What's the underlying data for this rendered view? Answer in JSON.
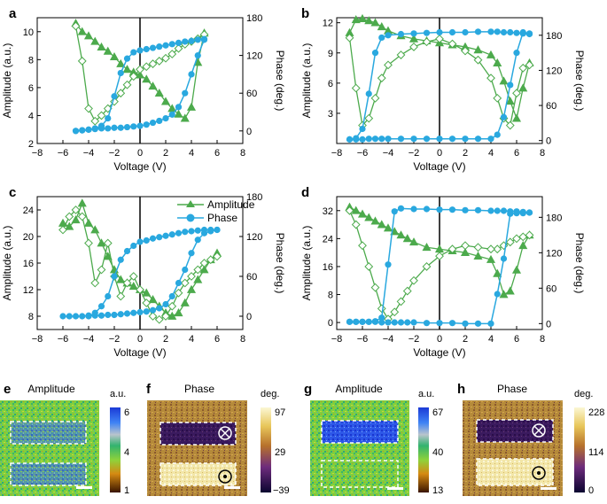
{
  "colors": {
    "amplitude": "#4caa4c",
    "phase": "#29a8df",
    "axis": "#000000",
    "dash": "#ffffff"
  },
  "legend": {
    "amplitude": "Amplitude",
    "phase": "Phase"
  },
  "chart_data": [
    {
      "panel": "a",
      "type": "line",
      "xlabel": "Voltage (V)",
      "ylabel": "Amplitude (a.u.)",
      "y2label": "Phase (deg.)",
      "xlim": [
        -8,
        8
      ],
      "xticks": [
        "−8",
        "−6",
        "−4",
        "−2",
        "0",
        "2",
        "4",
        "6",
        "8"
      ],
      "ylim": [
        2,
        11
      ],
      "yticks": [
        2,
        4,
        6,
        8,
        10
      ],
      "y2lim": [
        -20,
        180
      ],
      "y2ticks": [
        0,
        60,
        120,
        180
      ],
      "amplitude_up": {
        "x": [
          -5,
          -4.5,
          -4,
          -3.5,
          -3,
          -2.5,
          -2,
          -1.5,
          -1,
          -0.5,
          0,
          0.5,
          1,
          1.5,
          2,
          2.5,
          3,
          3.5,
          4,
          4.5,
          5
        ],
        "y": [
          10.6,
          10.0,
          9.7,
          9.3,
          8.9,
          8.6,
          8.2,
          7.7,
          7.3,
          7.1,
          6.9,
          6.6,
          6.1,
          5.6,
          5.0,
          4.5,
          4.1,
          3.8,
          4.6,
          7.8,
          9.9
        ]
      },
      "amplitude_down": {
        "x": [
          5,
          4.5,
          4,
          3.5,
          3,
          2.5,
          2,
          1.5,
          1,
          0.5,
          0,
          -0.5,
          -1,
          -1.5,
          -2,
          -2.5,
          -3,
          -3.5,
          -4,
          -4.5,
          -5
        ],
        "y": [
          9.8,
          9.5,
          9.3,
          9.1,
          8.8,
          8.4,
          8.1,
          7.9,
          7.7,
          7.5,
          7.3,
          6.8,
          6.2,
          5.6,
          5.0,
          4.5,
          4.0,
          3.6,
          4.5,
          7.9,
          10.4
        ]
      },
      "phase_up": {
        "x": [
          -5,
          -4.5,
          -4,
          -3.5,
          -3,
          -2.5,
          -2,
          -1.5,
          -1,
          -0.5,
          0,
          0.5,
          1,
          1.5,
          2,
          2.5,
          3,
          3.5,
          4,
          4.5,
          5
        ],
        "y": [
          0,
          1,
          2,
          3,
          4,
          4,
          5,
          5,
          6,
          7,
          8,
          10,
          13,
          16,
          20,
          26,
          38,
          60,
          90,
          120,
          145
        ]
      },
      "phase_down": {
        "x": [
          5,
          4.5,
          4,
          3.5,
          3,
          2.5,
          2,
          1.5,
          1,
          0.5,
          0,
          -0.5,
          -1,
          -1.5,
          -2,
          -2.5,
          -3,
          -3.5,
          -4,
          -4.5,
          -5
        ],
        "y": [
          146,
          145,
          143,
          142,
          140,
          138,
          136,
          134,
          132,
          130,
          128,
          125,
          115,
          92,
          55,
          20,
          8,
          4,
          2,
          1,
          0
        ]
      }
    },
    {
      "panel": "b",
      "type": "line",
      "xlabel": "Voltage (V)",
      "ylabel": "Amplitude (a.u.)",
      "y2label": "Phase (deg.)",
      "xlim": [
        -8,
        8
      ],
      "xticks": [
        "−8",
        "−6",
        "−4",
        "−2",
        "0",
        "2",
        "4",
        "6",
        "8"
      ],
      "ylim": [
        0,
        12.5
      ],
      "yticks": [
        3,
        6,
        9,
        12
      ],
      "y2lim": [
        -5,
        210
      ],
      "y2ticks": [
        0,
        60,
        120,
        180
      ],
      "amplitude_up": {
        "x": [
          -7,
          -6.5,
          -6,
          -5.5,
          -5,
          -4.5,
          -4,
          -3,
          -2,
          -1,
          0,
          1,
          2,
          3,
          4,
          4.5,
          5,
          5.5,
          6,
          6.5,
          7
        ],
        "y": [
          11,
          12.3,
          12.4,
          12.2,
          12.0,
          11.6,
          11.2,
          10.7,
          10.4,
          10.2,
          10.0,
          9.8,
          9.6,
          9.3,
          8.8,
          8.0,
          6.2,
          4.2,
          2.5,
          5.5,
          8.0
        ]
      },
      "amplitude_down": {
        "x": [
          7,
          6.5,
          6,
          5.5,
          5,
          4.5,
          4,
          3,
          2,
          1,
          0,
          -1,
          -2,
          -3,
          -4,
          -4.5,
          -5,
          -5.5,
          -6,
          -6.5,
          -7
        ],
        "y": [
          7.8,
          7.5,
          5.0,
          1.8,
          2.5,
          4.5,
          6.5,
          8.3,
          9.2,
          9.9,
          10.4,
          10.1,
          9.6,
          8.8,
          7.8,
          6.5,
          4.5,
          2.5,
          1.8,
          5.5,
          10.5
        ]
      },
      "phase_up": {
        "x": [
          -7,
          -6.5,
          -6,
          -5.5,
          -5,
          -4.5,
          -4,
          -3,
          -2,
          -1,
          0,
          1,
          2,
          3,
          4,
          4.5,
          5,
          5.5,
          6,
          6.5,
          7
        ],
        "y": [
          2,
          2,
          2,
          3,
          3,
          3,
          3,
          3,
          3,
          3,
          3,
          3,
          3,
          3,
          3,
          10,
          40,
          95,
          150,
          185,
          183
        ]
      },
      "phase_down": {
        "x": [
          7,
          6.5,
          6,
          5.5,
          5,
          4.5,
          4,
          3,
          2,
          1,
          0,
          -1,
          -2,
          -3,
          -4,
          -4.5,
          -5,
          -5.5,
          -6,
          -6.5,
          -7
        ],
        "y": [
          182,
          183,
          184,
          185,
          185,
          186,
          186,
          186,
          185,
          185,
          185,
          184,
          183,
          182,
          180,
          176,
          150,
          80,
          20,
          4,
          2
        ]
      }
    },
    {
      "panel": "c",
      "type": "line",
      "xlabel": "Voltage (V)",
      "ylabel": "Amplitude (a.u.)",
      "y2label": "Phase (deg.)",
      "xlim": [
        -8,
        8
      ],
      "xticks": [
        "−8",
        "−6",
        "−4",
        "−2",
        "0",
        "2",
        "4",
        "6",
        "8"
      ],
      "ylim": [
        6,
        26
      ],
      "yticks": [
        8,
        12,
        16,
        20,
        24
      ],
      "y2lim": [
        -20,
        180
      ],
      "y2ticks": [
        0,
        60,
        120,
        180
      ],
      "amplitude_up": {
        "x": [
          -6,
          -5.5,
          -5,
          -4.5,
          -4,
          -3.5,
          -3,
          -2.5,
          -2,
          -1.5,
          -1,
          -0.5,
          0,
          0.5,
          1,
          1.5,
          2,
          2.5,
          3,
          3.5,
          4,
          4.5,
          5,
          5.5,
          6
        ],
        "y": [
          22,
          21.5,
          22.5,
          25,
          22,
          21,
          19,
          17,
          15,
          13.5,
          13,
          12.5,
          12,
          11.5,
          10.5,
          9.5,
          8.5,
          8.0,
          8.5,
          10,
          12,
          13.5,
          15,
          16.5,
          17.5
        ]
      },
      "amplitude_down": {
        "x": [
          6,
          5.5,
          5,
          4.5,
          4,
          3.5,
          3,
          2.5,
          2,
          1.5,
          1,
          0.5,
          0,
          -0.5,
          -1,
          -1.5,
          -2,
          -2.5,
          -3,
          -3.5,
          -4,
          -4.5,
          -5,
          -5.5,
          -6
        ],
        "y": [
          17,
          16.5,
          16,
          15,
          14,
          13,
          11.5,
          9.5,
          8.0,
          7.5,
          8.0,
          10,
          12,
          14,
          13,
          11,
          14,
          19,
          15,
          13,
          19,
          23,
          24,
          23,
          21
        ]
      },
      "phase_up": {
        "x": [
          -6,
          -5.5,
          -5,
          -4.5,
          -4,
          -3.5,
          -3,
          -2.5,
          -2,
          -1.5,
          -1,
          -0.5,
          0,
          0.5,
          1,
          1.5,
          2,
          2.5,
          3,
          3.5,
          4,
          4.5,
          5,
          5.5,
          6
        ],
        "y": [
          0,
          0,
          0,
          0,
          1,
          1,
          1,
          2,
          2,
          3,
          4,
          5,
          6,
          7,
          9,
          12,
          18,
          30,
          50,
          70,
          95,
          115,
          125,
          128,
          130
        ]
      },
      "phase_down": {
        "x": [
          6,
          5.5,
          5,
          4.5,
          4,
          3.5,
          3,
          2.5,
          2,
          1.5,
          1,
          0.5,
          0,
          -0.5,
          -1,
          -1.5,
          -2,
          -2.5,
          -3,
          -3.5,
          -4
        ],
        "y": [
          130,
          130,
          130,
          129,
          128,
          127,
          125,
          123,
          121,
          119,
          117,
          114,
          112,
          106,
          98,
          85,
          60,
          30,
          15,
          5,
          0
        ]
      }
    },
    {
      "panel": "d",
      "type": "line",
      "xlabel": "Voltage (V)",
      "ylabel": "Amplitude (a.u.)",
      "y2label": "Phase (deg.)",
      "xlim": [
        -8,
        8
      ],
      "xticks": [
        "−8",
        "−6",
        "−4",
        "−2",
        "0",
        "2",
        "4",
        "6",
        "8"
      ],
      "ylim": [
        -2,
        36
      ],
      "yticks": [
        0,
        8,
        16,
        24,
        32
      ],
      "y2lim": [
        -10,
        215
      ],
      "y2ticks": [
        0,
        60,
        120,
        180
      ],
      "amplitude_up": {
        "x": [
          -7,
          -6.5,
          -6,
          -5.5,
          -5,
          -4.5,
          -4,
          -3.5,
          -3,
          -2.5,
          -2,
          -1,
          0,
          1,
          2,
          3,
          4,
          4.5,
          5,
          5.5,
          6,
          6.5,
          7
        ],
        "y": [
          33,
          32,
          31,
          30,
          29,
          28,
          27,
          26,
          25,
          24,
          23,
          21.5,
          21,
          20.5,
          20,
          19,
          18,
          14,
          8,
          9,
          15,
          22,
          25
        ]
      },
      "amplitude_down": {
        "x": [
          7,
          6.5,
          6,
          5.5,
          5,
          4.5,
          4,
          3,
          2,
          1,
          0,
          -1,
          -2,
          -2.5,
          -3,
          -3.5,
          -4,
          -4.5,
          -5,
          -5.5,
          -6,
          -6.5,
          -7
        ],
        "y": [
          25,
          24.5,
          24,
          23,
          22,
          21,
          21,
          21.5,
          22,
          21,
          19,
          16,
          12,
          9,
          6,
          3,
          1,
          4,
          10,
          16,
          22,
          28,
          32
        ]
      },
      "phase_up": {
        "x": [
          -7,
          -6.5,
          -6,
          -5.5,
          -5,
          -4.5,
          -4,
          -3.5,
          -3,
          -2.5,
          -2,
          -1,
          0,
          1,
          2,
          3,
          4,
          4.5,
          5,
          5.5,
          6,
          6.5,
          7
        ],
        "y": [
          3,
          3,
          3,
          3,
          3,
          2,
          2,
          2,
          2,
          2,
          2,
          1,
          1,
          1,
          0,
          0,
          0,
          50,
          110,
          186,
          187,
          187,
          188
        ]
      },
      "phase_down": {
        "x": [
          7,
          6.5,
          6,
          5.5,
          5,
          4.5,
          4,
          3,
          2,
          1,
          0,
          -1,
          -2,
          -3,
          -3.5,
          -4,
          -4.5,
          -5,
          -5.5,
          -6,
          -6.5,
          -7
        ],
        "y": [
          188,
          189,
          190,
          190,
          191,
          191,
          191,
          192,
          192,
          193,
          193,
          194,
          194,
          195,
          190,
          100,
          10,
          4,
          3,
          3,
          3,
          3
        ]
      }
    }
  ],
  "maps": [
    {
      "panel": "e",
      "title": "Amplitude",
      "unit": "a.u.",
      "ticks": [
        "6",
        "4",
        "1"
      ],
      "scalebar": "scale-bar",
      "colormap": "amplitude"
    },
    {
      "panel": "f",
      "title": "Phase",
      "unit": "deg.",
      "ticks": [
        "97",
        "29",
        "−39"
      ],
      "scalebar": "scale-bar",
      "colormap": "phase"
    },
    {
      "panel": "g",
      "title": "Amplitude",
      "unit": "a.u.",
      "ticks": [
        "67",
        "40",
        "13"
      ],
      "scalebar": "scale-bar",
      "colormap": "amplitude"
    },
    {
      "panel": "h",
      "title": "Phase",
      "unit": "deg.",
      "ticks": [
        "228",
        "114",
        "0"
      ],
      "scalebar": "scale-bar",
      "colormap": "phase"
    }
  ]
}
